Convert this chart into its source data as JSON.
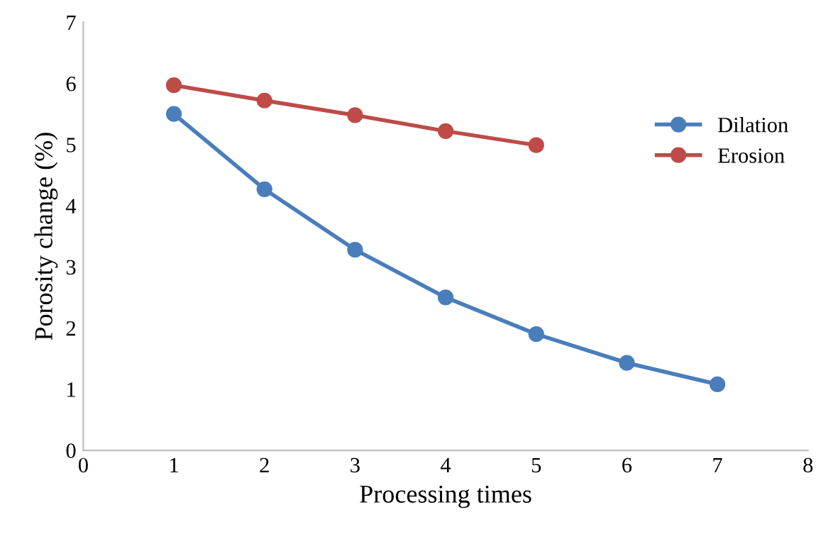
{
  "chart_data": {
    "type": "line",
    "xlabel": "Processing times",
    "ylabel": "Porosity change (%)",
    "x": [
      1,
      2,
      3,
      4,
      5,
      6,
      7
    ],
    "series": [
      {
        "name": "Dilation",
        "color": "#4a7ebb",
        "values": [
          5.5,
          4.27,
          3.28,
          2.5,
          1.9,
          1.43,
          1.08
        ]
      },
      {
        "name": "Erosion",
        "color": "#be4b48",
        "values": [
          5.97,
          5.72,
          5.48,
          5.22,
          4.99,
          null,
          null
        ]
      }
    ],
    "xlim": [
      0,
      8
    ],
    "xticks": [
      0,
      1,
      2,
      3,
      4,
      5,
      6,
      7,
      8
    ],
    "ylim": [
      0,
      7
    ],
    "yticks": [
      0,
      1,
      2,
      3,
      4,
      5,
      6,
      7
    ],
    "grid": false,
    "legend": "right",
    "marker": "circle",
    "line_style": "solid"
  }
}
